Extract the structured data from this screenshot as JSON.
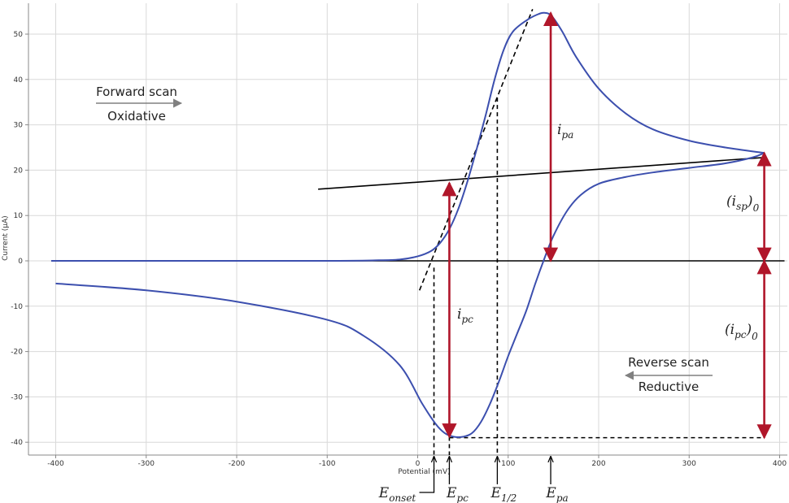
{
  "chart_data": {
    "type": "line",
    "xlabel": "Potential (mV)",
    "ylabel": "Current (µA)",
    "xlim": [
      -420,
      405
    ],
    "ylim": [
      -43,
      57
    ],
    "x_ticks": [
      -400,
      -300,
      -200,
      -100,
      0,
      100,
      200,
      300,
      400
    ],
    "y_ticks": [
      -40,
      -30,
      -20,
      -10,
      0,
      10,
      20,
      30,
      40,
      50
    ],
    "grid": true,
    "series": [
      {
        "name": "Forward scan (oxidative)",
        "color": "#3c4fae",
        "points": [
          [
            -405,
            0
          ],
          [
            -300,
            0
          ],
          [
            -200,
            0
          ],
          [
            -100,
            0
          ],
          [
            -50,
            0.1
          ],
          [
            -20,
            0.3
          ],
          [
            0,
            1.0
          ],
          [
            15,
            2.2
          ],
          [
            25,
            4.0
          ],
          [
            35,
            7.0
          ],
          [
            45,
            11.5
          ],
          [
            55,
            17.5
          ],
          [
            65,
            24.5
          ],
          [
            75,
            32.0
          ],
          [
            85,
            40.0
          ],
          [
            95,
            46.5
          ],
          [
            105,
            50.5
          ],
          [
            120,
            53.0
          ],
          [
            132,
            54.3
          ],
          [
            140,
            54.7
          ],
          [
            148,
            54.0
          ],
          [
            160,
            50.5
          ],
          [
            175,
            45.0
          ],
          [
            200,
            38.0
          ],
          [
            230,
            32.5
          ],
          [
            260,
            29.0
          ],
          [
            300,
            26.5
          ],
          [
            340,
            25.0
          ],
          [
            383,
            23.8
          ]
        ]
      },
      {
        "name": "Reverse scan (reductive)",
        "color": "#3c4fae",
        "points": [
          [
            383,
            23.8
          ],
          [
            370,
            22.8
          ],
          [
            340,
            21.5
          ],
          [
            300,
            20.5
          ],
          [
            260,
            19.5
          ],
          [
            230,
            18.5
          ],
          [
            200,
            17.0
          ],
          [
            180,
            14.5
          ],
          [
            165,
            11.0
          ],
          [
            150,
            5.5
          ],
          [
            140,
            0.5
          ],
          [
            130,
            -5.0
          ],
          [
            120,
            -11.0
          ],
          [
            110,
            -16.0
          ],
          [
            100,
            -21.0
          ],
          [
            90,
            -26.5
          ],
          [
            80,
            -31.5
          ],
          [
            70,
            -35.5
          ],
          [
            60,
            -38.0
          ],
          [
            50,
            -38.8
          ],
          [
            40,
            -38.8
          ],
          [
            30,
            -38.0
          ],
          [
            20,
            -36.0
          ],
          [
            5,
            -31.5
          ],
          [
            -20,
            -23.0
          ],
          [
            -60,
            -16.5
          ],
          [
            -100,
            -13.0
          ],
          [
            -200,
            -9.0
          ],
          [
            -300,
            -6.5
          ],
          [
            -400,
            -5.0
          ]
        ]
      }
    ],
    "baseline": {
      "x": [
        -400,
        400
      ],
      "y": [
        0,
        0
      ]
    },
    "extrapolated_baseline": {
      "x": [
        -110,
        383
      ],
      "y": [
        15.8,
        22.8
      ]
    },
    "tangent": {
      "x": [
        2,
        127
      ],
      "y": [
        -6.5,
        55.5
      ]
    },
    "markers": {
      "E_onset": 18,
      "E_pc": 35,
      "E_half": 88,
      "E_pa": 147
    },
    "peaks": {
      "i_pa_top": 54.7,
      "i_pa_bottom": 0,
      "i_pc_top": 17.2,
      "i_pc_bottom": -38.8,
      "E_half_top": 36,
      "return_potential": 383,
      "isp0_top": 23.8,
      "ipc0_bottom": -39.0
    },
    "labels": {
      "forward_line1": "Forward scan",
      "forward_line2": "Oxidative",
      "reverse_line1": "Reverse scan",
      "reverse_line2": "Reductive",
      "i_pa": "i",
      "i_pa_sub": "pa",
      "i_pc": "i",
      "i_pc_sub": "pc",
      "isp0_pre": "(i",
      "isp0_sub": "sp",
      "isp0_post": ")",
      "isp0_sub2": "0",
      "ipc0_pre": "(i",
      "ipc0_sub": "pc",
      "ipc0_post": ")",
      "ipc0_sub2": "0",
      "E": "E",
      "E_onset_sub": "onset",
      "E_pc_sub": "pc",
      "E_half_sub": "1/2",
      "E_pa_sub": "pa"
    },
    "colors": {
      "curve": "#3c4fae",
      "arrow": "#b0162a",
      "line": "#000000",
      "grid": "#d9d9d9",
      "arrow_gray": "#808080"
    }
  }
}
